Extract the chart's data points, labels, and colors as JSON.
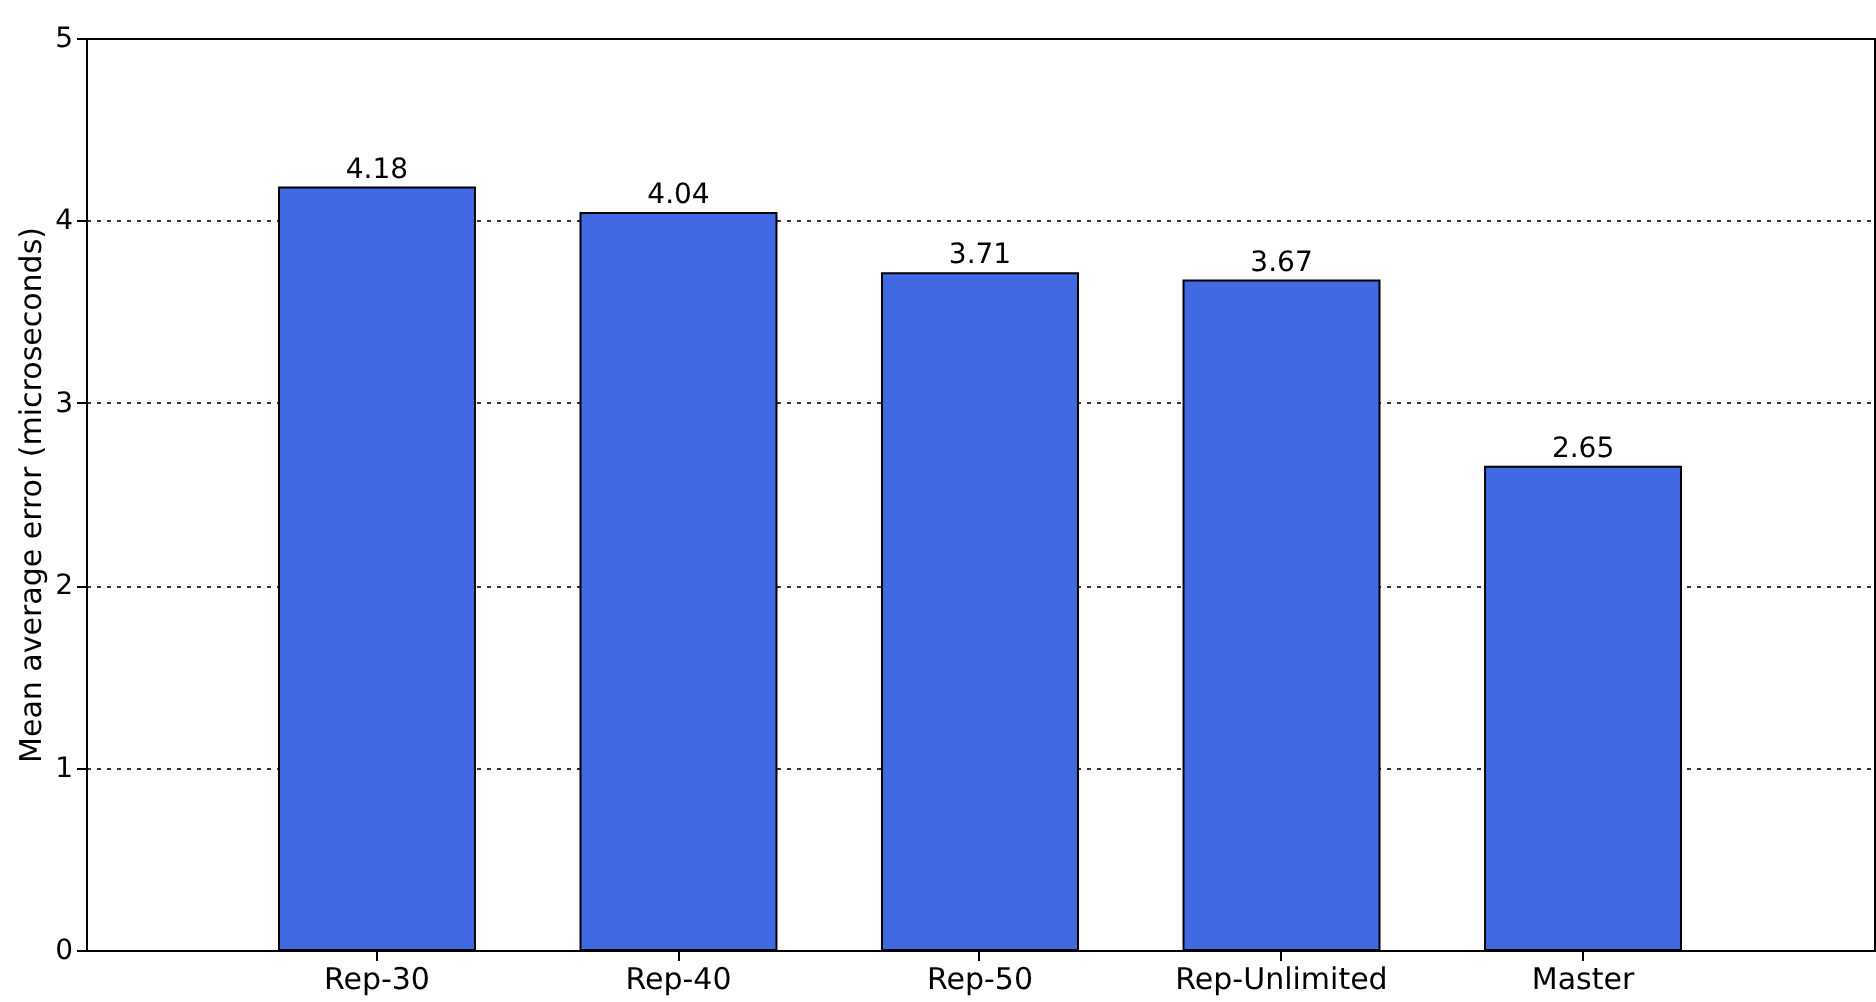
{
  "chart_data": {
    "type": "bar",
    "ylabel": "Mean average error (microseconds)",
    "categories": [
      "Rep-30",
      "Rep-40",
      "Rep-50",
      "Rep-Unlimited",
      "Master"
    ],
    "values": [
      4.18,
      4.04,
      3.71,
      3.67,
      2.65
    ],
    "color": "#4169e1",
    "ylim": [
      0,
      5
    ],
    "yticks": [
      0,
      1,
      2,
      3,
      4,
      5
    ],
    "grid": "y",
    "data_labels": true
  }
}
